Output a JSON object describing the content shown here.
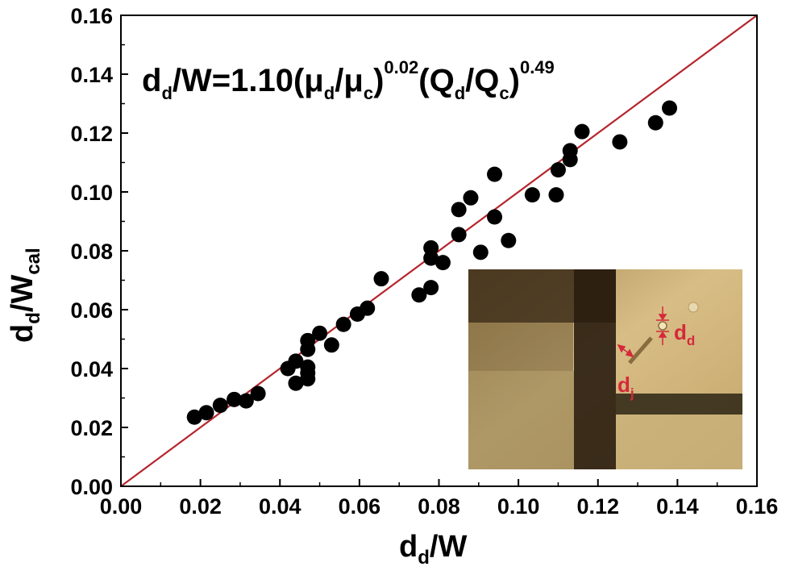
{
  "chart_data": {
    "type": "scatter",
    "xlabel": {
      "main": "d",
      "sub": "d",
      "tail": "/W"
    },
    "ylabel": {
      "main": "d",
      "sub": "d",
      "tail": "/W",
      "sub2": "cal"
    },
    "annotation": {
      "p1": "d",
      "s1": "d",
      "p2": "/W=1.10(",
      "p3": "μ",
      "s3": "d",
      "p4": "/",
      "p5": "μ",
      "s5": "c",
      "p6": ")",
      "sup6": "0.02",
      "p7": "(Q",
      "s7": "d",
      "p8": "/Q",
      "s8": "c",
      "p9": ")",
      "sup9": "0.49"
    },
    "xlim": [
      0.0,
      0.16
    ],
    "ylim": [
      0.0,
      0.16
    ],
    "x_ticks": [
      "0.00",
      "0.02",
      "0.04",
      "0.06",
      "0.08",
      "0.10",
      "0.12",
      "0.14",
      "0.16"
    ],
    "y_ticks": [
      "0.00",
      "0.02",
      "0.04",
      "0.06",
      "0.08",
      "0.10",
      "0.12",
      "0.14",
      "0.16"
    ],
    "grid": false,
    "reference_line": {
      "from": [
        0.0,
        0.0
      ],
      "to": [
        0.16,
        0.16
      ],
      "color": "#b5262e"
    },
    "marker_color": "#000000",
    "points": [
      [
        0.0185,
        0.0235
      ],
      [
        0.0215,
        0.025
      ],
      [
        0.025,
        0.0275
      ],
      [
        0.0285,
        0.0295
      ],
      [
        0.0315,
        0.029
      ],
      [
        0.0345,
        0.0315
      ],
      [
        0.042,
        0.04
      ],
      [
        0.044,
        0.0425
      ],
      [
        0.044,
        0.035
      ],
      [
        0.047,
        0.0495
      ],
      [
        0.047,
        0.0465
      ],
      [
        0.047,
        0.0405
      ],
      [
        0.047,
        0.0385
      ],
      [
        0.047,
        0.0365
      ],
      [
        0.05,
        0.052
      ],
      [
        0.053,
        0.048
      ],
      [
        0.056,
        0.055
      ],
      [
        0.0595,
        0.0585
      ],
      [
        0.062,
        0.0605
      ],
      [
        0.0655,
        0.0705
      ],
      [
        0.075,
        0.065
      ],
      [
        0.078,
        0.0675
      ],
      [
        0.078,
        0.0775
      ],
      [
        0.078,
        0.081
      ],
      [
        0.081,
        0.076
      ],
      [
        0.085,
        0.094
      ],
      [
        0.085,
        0.0855
      ],
      [
        0.088,
        0.098
      ],
      [
        0.0905,
        0.0795
      ],
      [
        0.094,
        0.106
      ],
      [
        0.094,
        0.0915
      ],
      [
        0.0975,
        0.0835
      ],
      [
        0.1035,
        0.099
      ],
      [
        0.1095,
        0.099
      ],
      [
        0.11,
        0.1075
      ],
      [
        0.113,
        0.111
      ],
      [
        0.113,
        0.114
      ],
      [
        0.116,
        0.1205
      ],
      [
        0.1255,
        0.117
      ],
      [
        0.1345,
        0.1235
      ],
      [
        0.138,
        0.1285
      ]
    ]
  },
  "inset": {
    "label_dd": {
      "main": "d",
      "sub": "d"
    },
    "label_dj": {
      "main": "d",
      "sub": "j"
    },
    "colors": {
      "label": "#d42a3a",
      "background": "#c9a96a"
    }
  }
}
